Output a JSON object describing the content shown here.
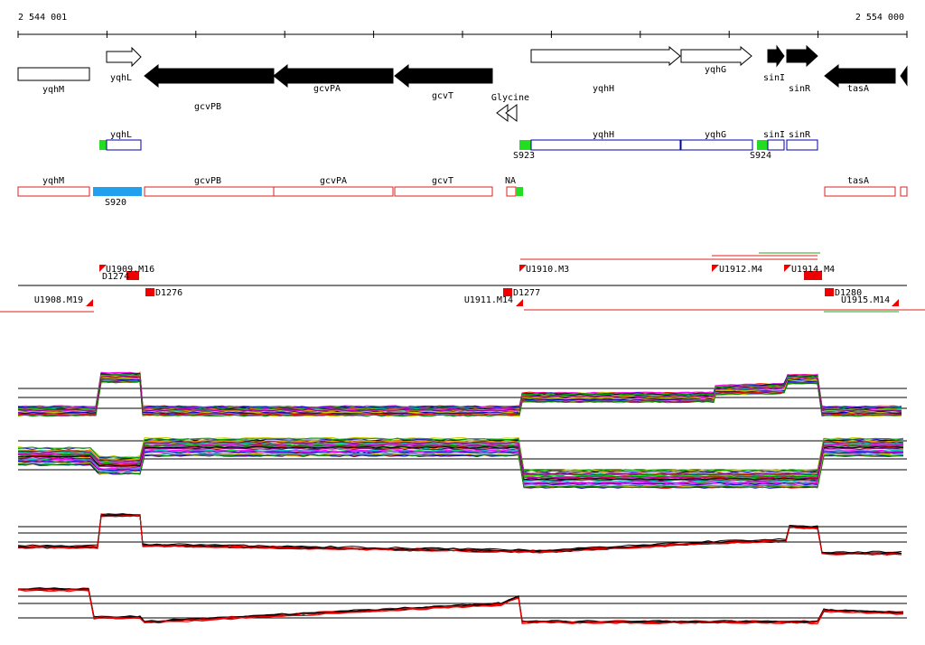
{
  "scale": {
    "start": "2 544 001",
    "end": "2 554 000"
  },
  "genes": [
    "yqhM",
    "yqhL",
    "gcvPB",
    "gcvPA",
    "gcvT",
    "yqhH",
    "yqhG",
    "sinI",
    "sinR",
    "tasA"
  ],
  "terminator": "Glycine",
  "transcripts": {
    "labels": [
      "yqhL",
      "yqhH",
      "yqhG",
      "sinI",
      "sinR"
    ],
    "sites": [
      "S923",
      "S924"
    ]
  },
  "operons": {
    "labels": [
      "yqhM",
      "gcvPB",
      "gcvPA",
      "gcvT",
      "NA",
      "tasA"
    ],
    "sites": [
      "S920"
    ]
  },
  "segments": [
    "U1909.M16",
    "D1274",
    "D1276",
    "U1908.M19",
    "U1910.M3",
    "D1277",
    "U1911.M14",
    "U1912.M4",
    "U1914.M4",
    "D1280",
    "U1915.M14"
  ]
}
